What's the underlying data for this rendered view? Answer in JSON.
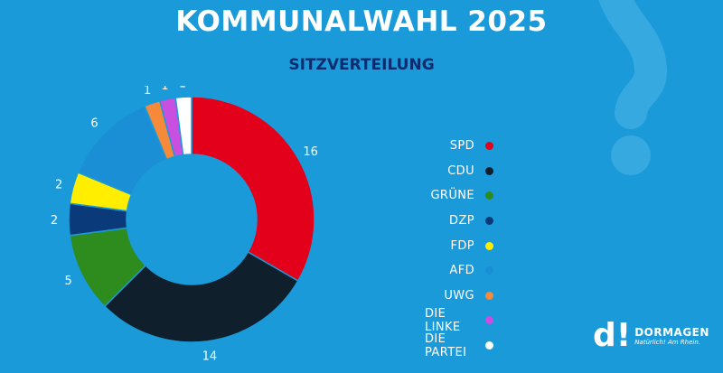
{
  "title": "KOMMUNALWAHL 2025",
  "subtitle": "SITZVERTEILUNG",
  "logo": {
    "mark": "d!",
    "name": "DORMAGEN",
    "claim": "Natürlich! Am Rhein."
  },
  "colors": {
    "background": "#1a9ad9",
    "subtitle": "#0b2d6f"
  },
  "chart_data": {
    "type": "pie",
    "variant": "donut",
    "title": "SITZVERTEILUNG",
    "legend_position": "right",
    "categories": [
      "SPD",
      "CDU",
      "GRÜNE",
      "DZP",
      "FDP",
      "AFD",
      "UWG",
      "DIE LINKE",
      "DIE PARTEI"
    ],
    "values": [
      16,
      14,
      5,
      2,
      2,
      6,
      1,
      1,
      1
    ],
    "colors": [
      "#e2001a",
      "#0f1f2b",
      "#2e8b1e",
      "#0a3a7a",
      "#ffee00",
      "#1b8fd6",
      "#f58a3b",
      "#c84fe0",
      "#ffffff"
    ]
  }
}
